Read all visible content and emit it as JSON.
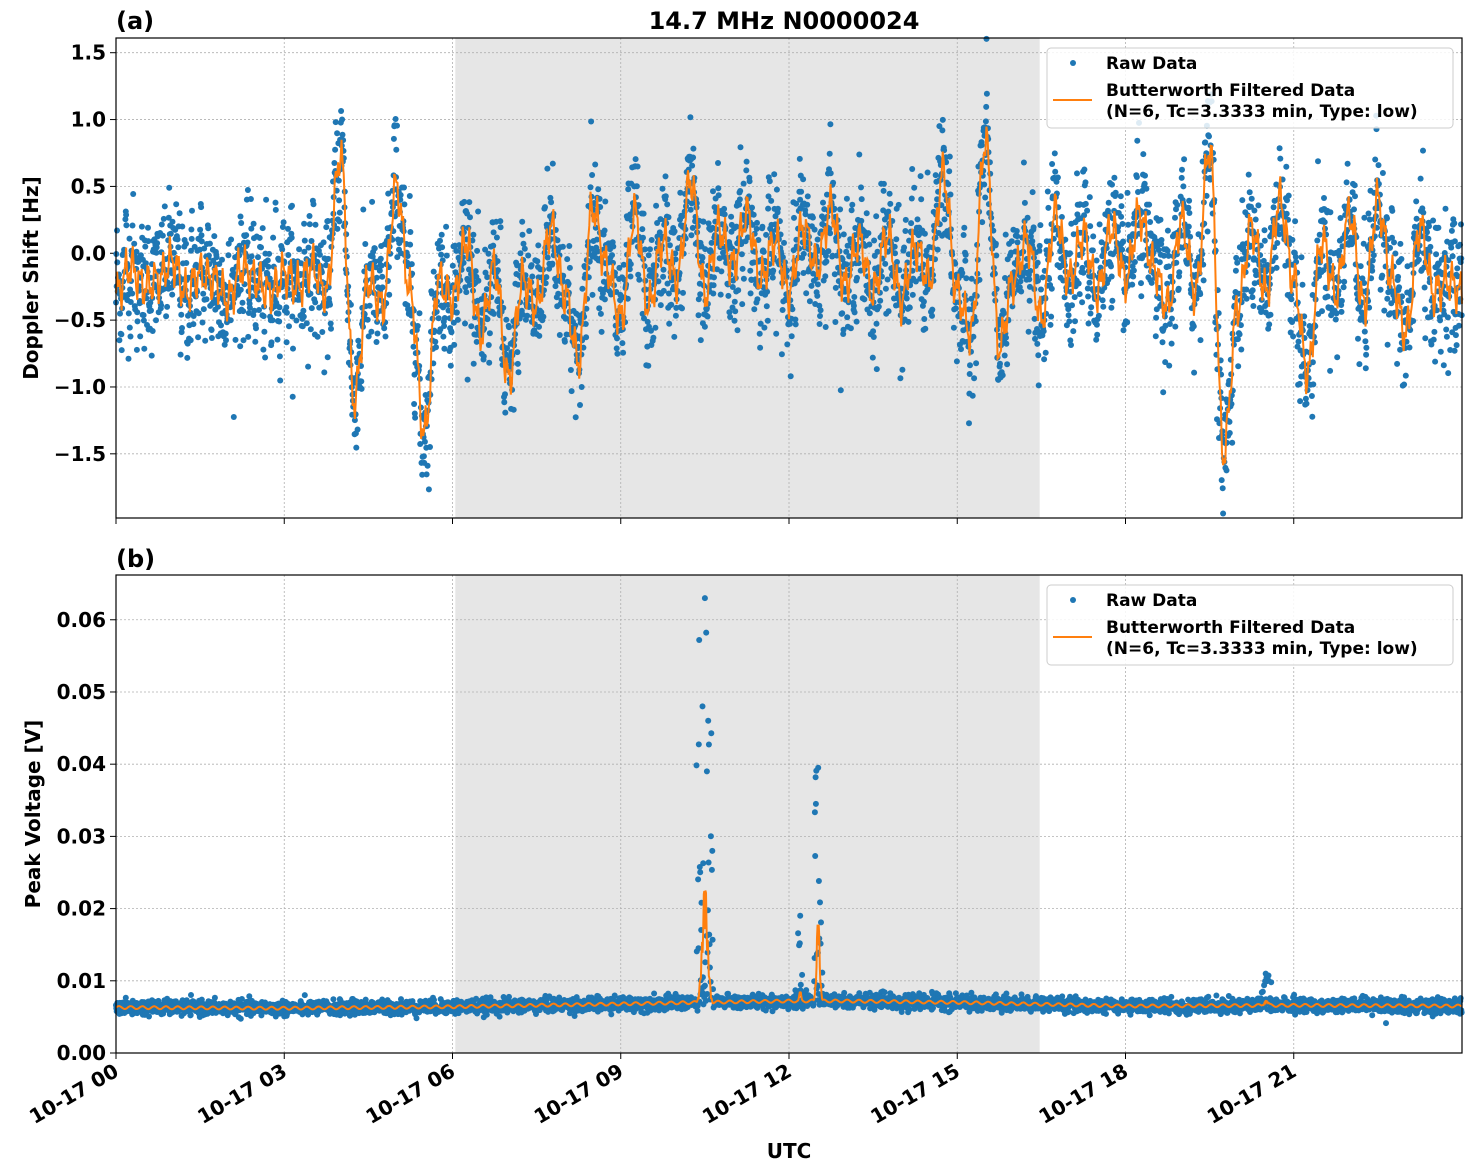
{
  "chart_data": [
    {
      "type": "scatter",
      "panel_label": "(a)",
      "title": "14.7 MHz N0000024",
      "xlabel": "",
      "ylabel": "Doppler Shift [Hz]",
      "xlim_hours": [
        0,
        24
      ],
      "ylim": [
        -1.98,
        1.61
      ],
      "yticks": [
        1.5,
        1.0,
        0.5,
        0.0,
        -0.5,
        -1.0,
        -1.5
      ],
      "ytick_labels": [
        "1.5",
        "1.0",
        "0.5",
        "0.0",
        "−0.5",
        "−1.0",
        "−1.5"
      ],
      "grid": true,
      "legend_placement": "top-right",
      "shaded_interval_hours": [
        6.05,
        16.47
      ],
      "raw_noise_std": 0.22,
      "filtered_step_minutes": 15,
      "filtered": [
        -0.3,
        -0.1,
        -0.25,
        -0.2,
        -0.05,
        -0.3,
        -0.15,
        -0.2,
        -0.35,
        -0.1,
        -0.2,
        -0.3,
        -0.15,
        -0.25,
        -0.1,
        -0.3,
        0.75,
        -1.1,
        -0.2,
        -0.4,
        0.5,
        -0.3,
        -1.35,
        -0.2,
        -0.35,
        0.1,
        -0.6,
        -0.1,
        -0.95,
        -0.2,
        -0.4,
        0.2,
        -0.3,
        -0.8,
        0.35,
        -0.1,
        -0.5,
        0.3,
        -0.4,
        0.1,
        -0.2,
        0.55,
        -0.3,
        0.2,
        -0.1,
        0.3,
        -0.2,
        0.1,
        -0.3,
        0.2,
        -0.1,
        0.35,
        -0.25,
        0.1,
        -0.3,
        0.15,
        -0.35,
        0.05,
        -0.2,
        0.6,
        -0.3,
        -0.6,
        0.85,
        -0.7,
        -0.2,
        0.1,
        -0.5,
        0.3,
        -0.2,
        0.15,
        -0.3,
        0.2,
        -0.2,
        0.3,
        -0.1,
        -0.4,
        0.25,
        -0.3,
        0.8,
        -1.5,
        -0.4,
        0.2,
        -0.3,
        0.4,
        -0.2,
        -0.9,
        0.1,
        -0.3,
        0.3,
        -0.4,
        0.4,
        -0.2,
        -0.6,
        0.2,
        -0.3,
        -0.2
      ],
      "series": [
        {
          "name": "Raw Data",
          "color": "#1f77b4"
        },
        {
          "name": "Butterworth Filtered Data",
          "name_line2": "(N=6, Tc=3.3333 min, Type: low)",
          "color": "#ff7f0e"
        }
      ]
    },
    {
      "type": "scatter",
      "panel_label": "(b)",
      "xlabel": "UTC",
      "ylabel": "Peak Voltage [V]",
      "xlim_hours": [
        0,
        24
      ],
      "ylim": [
        0,
        0.0662
      ],
      "yticks": [
        0.0,
        0.01,
        0.02,
        0.03,
        0.04,
        0.05,
        0.06
      ],
      "ytick_labels": [
        "0.00",
        "0.01",
        "0.02",
        "0.03",
        "0.04",
        "0.05",
        "0.06"
      ],
      "xtick_hours": [
        0,
        3,
        6,
        9,
        12,
        15,
        18,
        21
      ],
      "xtick_labels": [
        "10-17 00",
        "10-17 03",
        "10-17 06",
        "10-17 09",
        "10-17 12",
        "10-17 15",
        "10-17 18",
        "10-17 21"
      ],
      "grid": true,
      "legend_placement": "top-right",
      "shaded_interval_hours": [
        6.05,
        16.47
      ],
      "raw_noise_std": 0.0005,
      "filtered_baseline_hours": [
        0,
        3,
        6,
        9,
        10.4,
        12,
        13,
        15,
        18,
        21,
        24
      ],
      "filtered_baseline_values": [
        0.0063,
        0.0062,
        0.0064,
        0.0068,
        0.007,
        0.0072,
        0.0072,
        0.007,
        0.0065,
        0.0066,
        0.0065
      ],
      "spikes": [
        {
          "hour": 10.5,
          "peak_raw": 0.063,
          "peak_filtered": 0.027,
          "width_hours": 0.15
        },
        {
          "hour": 12.2,
          "peak_raw": 0.019,
          "peak_filtered": 0.009,
          "width_hours": 0.04
        },
        {
          "hour": 12.52,
          "peak_raw": 0.0395,
          "peak_filtered": 0.023,
          "width_hours": 0.08
        },
        {
          "hour": 20.5,
          "peak_raw": 0.011,
          "peak_filtered": 0.008,
          "width_hours": 0.1
        }
      ],
      "series": [
        {
          "name": "Raw Data",
          "color": "#1f77b4"
        },
        {
          "name": "Butterworth Filtered Data",
          "name_line2": "(N=6, Tc=3.3333 min, Type: low)",
          "color": "#ff7f0e"
        }
      ]
    }
  ]
}
